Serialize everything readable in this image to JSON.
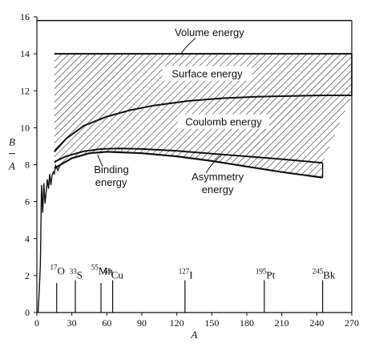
{
  "chart_data": {
    "type": "area",
    "xlabel": "A",
    "ylabel_top": "B",
    "ylabel_bottom": "A",
    "xlim": [
      0,
      270
    ],
    "ylim": [
      0,
      16
    ],
    "xticks": [
      "0",
      "30",
      "60",
      "90",
      "120",
      "150",
      "180",
      "210",
      "240",
      "270"
    ],
    "yticks": [
      "0",
      "2",
      "4",
      "6",
      "8",
      "10",
      "12",
      "14",
      "16"
    ],
    "grid": false,
    "series": [
      {
        "name": "Volume energy",
        "x": [
          0,
          270
        ],
        "y": [
          15.8,
          15.8
        ]
      },
      {
        "x": [
          15,
          270
        ],
        "y": [
          14.0,
          14.0
        ]
      },
      {
        "x": [
          15,
          25,
          40,
          60,
          80,
          100,
          130,
          160,
          190,
          220,
          245,
          270
        ],
        "y": [
          8.7,
          9.4,
          10.1,
          10.6,
          10.95,
          11.2,
          11.45,
          11.6,
          11.68,
          11.72,
          11.75,
          11.75
        ]
      },
      {
        "x": [
          15,
          25,
          40,
          55,
          70,
          90,
          120,
          150,
          180,
          210,
          245
        ],
        "y": [
          8.15,
          8.45,
          8.72,
          8.85,
          8.88,
          8.85,
          8.75,
          8.6,
          8.45,
          8.3,
          8.1
        ]
      },
      {
        "x": [
          15,
          30,
          45,
          60,
          90,
          120,
          150,
          180,
          210,
          245
        ],
        "y": [
          7.8,
          8.35,
          8.62,
          8.7,
          8.62,
          8.45,
          8.2,
          7.9,
          7.6,
          7.3
        ]
      },
      {
        "name": "Binding energy",
        "x": [
          1,
          2,
          3,
          4,
          5,
          6,
          7,
          8,
          9,
          10,
          11,
          12,
          13,
          14,
          15,
          16,
          18,
          20
        ],
        "y": [
          0,
          1.1,
          2.6,
          6.9,
          5.4,
          7.0,
          5.9,
          6.5,
          7.2,
          6.7,
          7.5,
          6.9,
          7.4,
          7.6,
          7.5,
          7.95,
          7.7,
          8.0
        ]
      }
    ],
    "regions": [
      {
        "name": "Surface energy"
      },
      {
        "name": "Coulomb energy"
      },
      {
        "name": "Asymmetry energy"
      }
    ],
    "labels": {
      "volume": "Volume energy",
      "surface": "Surface energy",
      "coulomb": "Coulomb energy",
      "binding_line1": "Binding",
      "binding_line2": "energy",
      "asymmetry_line1": "Asymmetry",
      "asymmetry_line2": "energy"
    },
    "isotopes": [
      {
        "mass": "17",
        "symbol": "O",
        "A": 17,
        "row": "upper"
      },
      {
        "mass": "33",
        "symbol": "S",
        "A": 33,
        "row": "lower"
      },
      {
        "mass": "55",
        "symbol": "Mn",
        "A": 55,
        "row": "upper"
      },
      {
        "mass": "65",
        "symbol": "Cu",
        "A": 65,
        "row": "lower"
      },
      {
        "mass": "127",
        "symbol": "I",
        "A": 127,
        "row": "lower"
      },
      {
        "mass": "195",
        "symbol": "Pt",
        "A": 195,
        "row": "lower"
      },
      {
        "mass": "245",
        "symbol": "Bk",
        "A": 245,
        "row": "lower"
      }
    ]
  }
}
